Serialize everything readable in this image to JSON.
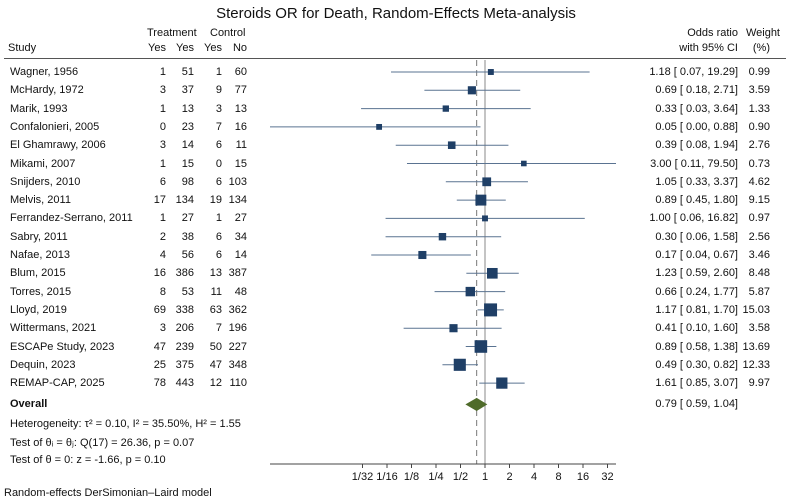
{
  "chart_data": {
    "type": "forest",
    "title": "Steroids OR for Death, Random-Effects Meta-analysis",
    "columns": {
      "study": "Study",
      "treatment": "Treatment",
      "control": "Control",
      "yes": "Yes",
      "no": "No",
      "or_line1": "Odds ratio",
      "or_line2": "with 95% CI",
      "weight_line1": "Weight",
      "weight_line2": "(%)"
    },
    "studies": [
      {
        "study": "Wagner, 1956",
        "t_yes": "1",
        "t_no": "51",
        "c_yes": "1",
        "c_no": "60",
        "or": 1.18,
        "lo": 0.07,
        "hi": 19.29,
        "ci_text": "1.18 [ 0.07, 19.29]",
        "weight": 0.99,
        "weight_text": "0.99"
      },
      {
        "study": "McHardy, 1972",
        "t_yes": "3",
        "t_no": "37",
        "c_yes": "9",
        "c_no": "77",
        "or": 0.69,
        "lo": 0.18,
        "hi": 2.71,
        "ci_text": "0.69 [ 0.18,   2.71]",
        "weight": 3.59,
        "weight_text": "3.59"
      },
      {
        "study": "Marik, 1993",
        "t_yes": "1",
        "t_no": "13",
        "c_yes": "3",
        "c_no": "13",
        "or": 0.33,
        "lo": 0.03,
        "hi": 3.64,
        "ci_text": "0.33 [ 0.03,   3.64]",
        "weight": 1.33,
        "weight_text": "1.33"
      },
      {
        "study": "Confalonieri, 2005",
        "t_yes": "0",
        "t_no": "23",
        "c_yes": "7",
        "c_no": "16",
        "or": 0.05,
        "lo": 0.0,
        "hi": 0.88,
        "ci_text": "0.05 [ 0.00,   0.88]",
        "weight": 0.9,
        "weight_text": "0.90"
      },
      {
        "study": "El Ghamrawy, 2006",
        "t_yes": "3",
        "t_no": "14",
        "c_yes": "6",
        "c_no": "11",
        "or": 0.39,
        "lo": 0.08,
        "hi": 1.94,
        "ci_text": "0.39 [ 0.08,   1.94]",
        "weight": 2.76,
        "weight_text": "2.76"
      },
      {
        "study": "Mikami, 2007",
        "t_yes": "1",
        "t_no": "15",
        "c_yes": "0",
        "c_no": "15",
        "or": 3.0,
        "lo": 0.11,
        "hi": 79.5,
        "ci_text": "3.00 [ 0.11, 79.50]",
        "weight": 0.73,
        "weight_text": "0.73"
      },
      {
        "study": "Snijders, 2010",
        "t_yes": "6",
        "t_no": "98",
        "c_yes": "6",
        "c_no": "103",
        "or": 1.05,
        "lo": 0.33,
        "hi": 3.37,
        "ci_text": "1.05 [ 0.33,   3.37]",
        "weight": 4.62,
        "weight_text": "4.62"
      },
      {
        "study": "Melvis, 2011",
        "t_yes": "17",
        "t_no": "134",
        "c_yes": "19",
        "c_no": "134",
        "or": 0.89,
        "lo": 0.45,
        "hi": 1.8,
        "ci_text": "0.89 [ 0.45,   1.80]",
        "weight": 9.15,
        "weight_text": "9.15"
      },
      {
        "study": "Ferrandez-Serrano, 2011",
        "t_yes": "1",
        "t_no": "27",
        "c_yes": "1",
        "c_no": "27",
        "or": 1.0,
        "lo": 0.06,
        "hi": 16.82,
        "ci_text": "1.00 [ 0.06, 16.82]",
        "weight": 0.97,
        "weight_text": "0.97"
      },
      {
        "study": "Sabry, 2011",
        "t_yes": "2",
        "t_no": "38",
        "c_yes": "6",
        "c_no": "34",
        "or": 0.3,
        "lo": 0.06,
        "hi": 1.58,
        "ci_text": "0.30 [ 0.06,   1.58]",
        "weight": 2.56,
        "weight_text": "2.56"
      },
      {
        "study": "Nafae, 2013",
        "t_yes": "4",
        "t_no": "56",
        "c_yes": "6",
        "c_no": "14",
        "or": 0.17,
        "lo": 0.04,
        "hi": 0.67,
        "ci_text": "0.17 [ 0.04,   0.67]",
        "weight": 3.46,
        "weight_text": "3.46"
      },
      {
        "study": "Blum, 2015",
        "t_yes": "16",
        "t_no": "386",
        "c_yes": "13",
        "c_no": "387",
        "or": 1.23,
        "lo": 0.59,
        "hi": 2.6,
        "ci_text": "1.23 [ 0.59,   2.60]",
        "weight": 8.48,
        "weight_text": "8.48"
      },
      {
        "study": "Torres, 2015",
        "t_yes": "8",
        "t_no": "53",
        "c_yes": "11",
        "c_no": "48",
        "or": 0.66,
        "lo": 0.24,
        "hi": 1.77,
        "ci_text": "0.66 [ 0.24,   1.77]",
        "weight": 5.87,
        "weight_text": "5.87"
      },
      {
        "study": "Lloyd, 2019",
        "t_yes": "69",
        "t_no": "338",
        "c_yes": "63",
        "c_no": "362",
        "or": 1.17,
        "lo": 0.81,
        "hi": 1.7,
        "ci_text": "1.17 [ 0.81,   1.70]",
        "weight": 15.03,
        "weight_text": "15.03"
      },
      {
        "study": "Wittermans, 2021",
        "t_yes": "3",
        "t_no": "206",
        "c_yes": "7",
        "c_no": "196",
        "or": 0.41,
        "lo": 0.1,
        "hi": 1.6,
        "ci_text": "0.41 [ 0.10,   1.60]",
        "weight": 3.58,
        "weight_text": "3.58"
      },
      {
        "study": "ESCAPe Study, 2023",
        "t_yes": "47",
        "t_no": "239",
        "c_yes": "50",
        "c_no": "227",
        "or": 0.89,
        "lo": 0.58,
        "hi": 1.38,
        "ci_text": "0.89 [ 0.58,   1.38]",
        "weight": 13.69,
        "weight_text": "13.69"
      },
      {
        "study": "Dequin, 2023",
        "t_yes": "25",
        "t_no": "375",
        "c_yes": "47",
        "c_no": "348",
        "or": 0.49,
        "lo": 0.3,
        "hi": 0.82,
        "ci_text": "0.49 [ 0.30,   0.82]",
        "weight": 12.33,
        "weight_text": "12.33"
      },
      {
        "study": "REMAP-CAP, 2025",
        "t_yes": "78",
        "t_no": "443",
        "c_yes": "12",
        "c_no": "110",
        "or": 1.61,
        "lo": 0.85,
        "hi": 3.07,
        "ci_text": "1.61 [ 0.85,   3.07]",
        "weight": 9.97,
        "weight_text": "9.97"
      }
    ],
    "overall": {
      "label": "Overall",
      "or": 0.79,
      "lo": 0.59,
      "hi": 1.04,
      "ci_text": "0.79 [ 0.59,   1.04]"
    },
    "stats": [
      "Heterogeneity: τ² = 0.10, I² = 35.50%, H² = 1.55",
      "Test of θᵢ = θⱼ: Q(17) = 26.36, p = 0.07",
      "Test of θ = 0: z = -1.66, p = 0.10"
    ],
    "x_scale": "log2",
    "x_ticks": [
      {
        "label": "1/32",
        "value": 0.03125
      },
      {
        "label": "1/16",
        "value": 0.0625
      },
      {
        "label": "1/8",
        "value": 0.125
      },
      {
        "label": "1/4",
        "value": 0.25
      },
      {
        "label": "1/2",
        "value": 0.5
      },
      {
        "label": "1",
        "value": 1
      },
      {
        "label": "2",
        "value": 2
      },
      {
        "label": "4",
        "value": 4
      },
      {
        "label": "8",
        "value": 8
      },
      {
        "label": "16",
        "value": 16
      },
      {
        "label": "32",
        "value": 32
      }
    ],
    "footnote": "Random-effects DerSimonian–Laird model",
    "colors": {
      "marker": "#1f3f66",
      "ci": "#5a7391",
      "diamond": "#4f6b2a",
      "ref": "#777777"
    }
  }
}
